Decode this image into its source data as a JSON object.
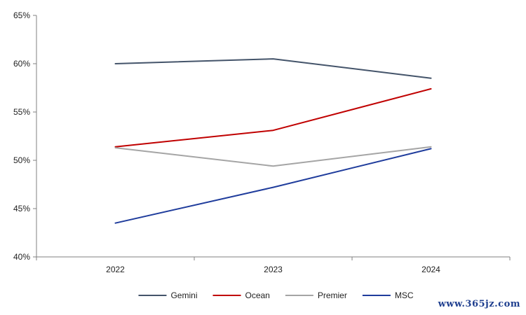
{
  "chart_data": {
    "type": "line",
    "title": "",
    "xlabel": "",
    "ylabel": "",
    "categories": [
      "2022",
      "2023",
      "2024"
    ],
    "ylim": [
      40,
      65
    ],
    "yticks": [
      40,
      45,
      50,
      55,
      60,
      65
    ],
    "ytick_labels": [
      "40%",
      "45%",
      "50%",
      "55%",
      "60%",
      "65%"
    ],
    "grid": false,
    "legend_position": "bottom",
    "series": [
      {
        "name": "Gemini",
        "color": "#44546a",
        "values": [
          60.0,
          60.5,
          58.5
        ]
      },
      {
        "name": "Ocean",
        "color": "#c00000",
        "values": [
          51.4,
          53.1,
          57.4
        ]
      },
      {
        "name": "Premier",
        "color": "#a5a5a5",
        "values": [
          51.3,
          49.4,
          51.4
        ]
      },
      {
        "name": "MSC",
        "color": "#1f3c9c",
        "values": [
          43.5,
          47.2,
          51.2
        ]
      }
    ]
  },
  "watermark": "www.365jz.com"
}
